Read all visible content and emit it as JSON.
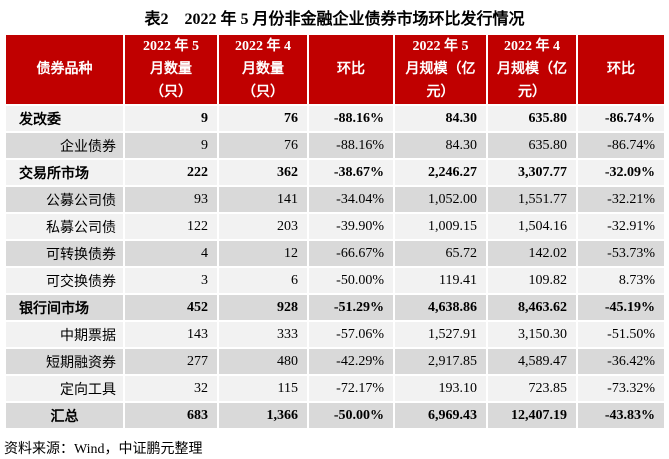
{
  "title": "表2　2022 年 5 月份非金融企业债券市场环比发行情况",
  "source": "资料来源：Wind，中证鹏元整理",
  "colors": {
    "header_bg": "#c00000",
    "header_text": "#ffffff",
    "row_light": "#f2f2f2",
    "row_dark": "#d9d9d9",
    "body_text": "#000000"
  },
  "table": {
    "header": [
      {
        "lines": [
          "债券品种"
        ]
      },
      {
        "lines": [
          "2022 年 5",
          "月数量",
          "（只）"
        ]
      },
      {
        "lines": [
          "2022 年 4",
          "月数量",
          "（只）"
        ]
      },
      {
        "lines": [
          "环比"
        ]
      },
      {
        "lines": [
          "2022 年 5",
          "月规模（亿",
          "元）"
        ]
      },
      {
        "lines": [
          "2022 年 4",
          "月规模（亿",
          "元）"
        ]
      },
      {
        "lines": [
          "环比"
        ]
      }
    ],
    "rows": [
      {
        "label": "发改委",
        "style": "group",
        "cells": [
          "9",
          "76",
          "-88.16%",
          "84.30",
          "635.80",
          "-86.74%"
        ]
      },
      {
        "label": "企业债券",
        "style": "sub",
        "cells": [
          "9",
          "76",
          "-88.16%",
          "84.30",
          "635.80",
          "-86.74%"
        ]
      },
      {
        "label": "交易所市场",
        "style": "group",
        "cells": [
          "222",
          "362",
          "-38.67%",
          "2,246.27",
          "3,307.77",
          "-32.09%"
        ]
      },
      {
        "label": "公募公司债",
        "style": "sub",
        "cells": [
          "93",
          "141",
          "-34.04%",
          "1,052.00",
          "1,551.77",
          "-32.21%"
        ]
      },
      {
        "label": "私募公司债",
        "style": "sub",
        "cells": [
          "122",
          "203",
          "-39.90%",
          "1,009.15",
          "1,504.16",
          "-32.91%"
        ]
      },
      {
        "label": "可转换债券",
        "style": "sub",
        "cells": [
          "4",
          "12",
          "-66.67%",
          "65.72",
          "142.02",
          "-53.73%"
        ]
      },
      {
        "label": "可交换债券",
        "style": "sub",
        "cells": [
          "3",
          "6",
          "-50.00%",
          "119.41",
          "109.82",
          "8.73%"
        ]
      },
      {
        "label": "银行间市场",
        "style": "group",
        "cells": [
          "452",
          "928",
          "-51.29%",
          "4,638.86",
          "8,463.62",
          "-45.19%"
        ]
      },
      {
        "label": "中期票据",
        "style": "sub",
        "cells": [
          "143",
          "333",
          "-57.06%",
          "1,527.91",
          "3,150.30",
          "-51.50%"
        ]
      },
      {
        "label": "短期融资券",
        "style": "sub",
        "cells": [
          "277",
          "480",
          "-42.29%",
          "2,917.85",
          "4,589.47",
          "-36.42%"
        ]
      },
      {
        "label": "定向工具",
        "style": "sub",
        "cells": [
          "32",
          "115",
          "-72.17%",
          "193.10",
          "723.85",
          "-73.32%"
        ]
      },
      {
        "label": "汇总",
        "style": "total",
        "cells": [
          "683",
          "1,366",
          "-50.00%",
          "6,969.43",
          "12,407.19",
          "-43.83%"
        ]
      }
    ]
  }
}
